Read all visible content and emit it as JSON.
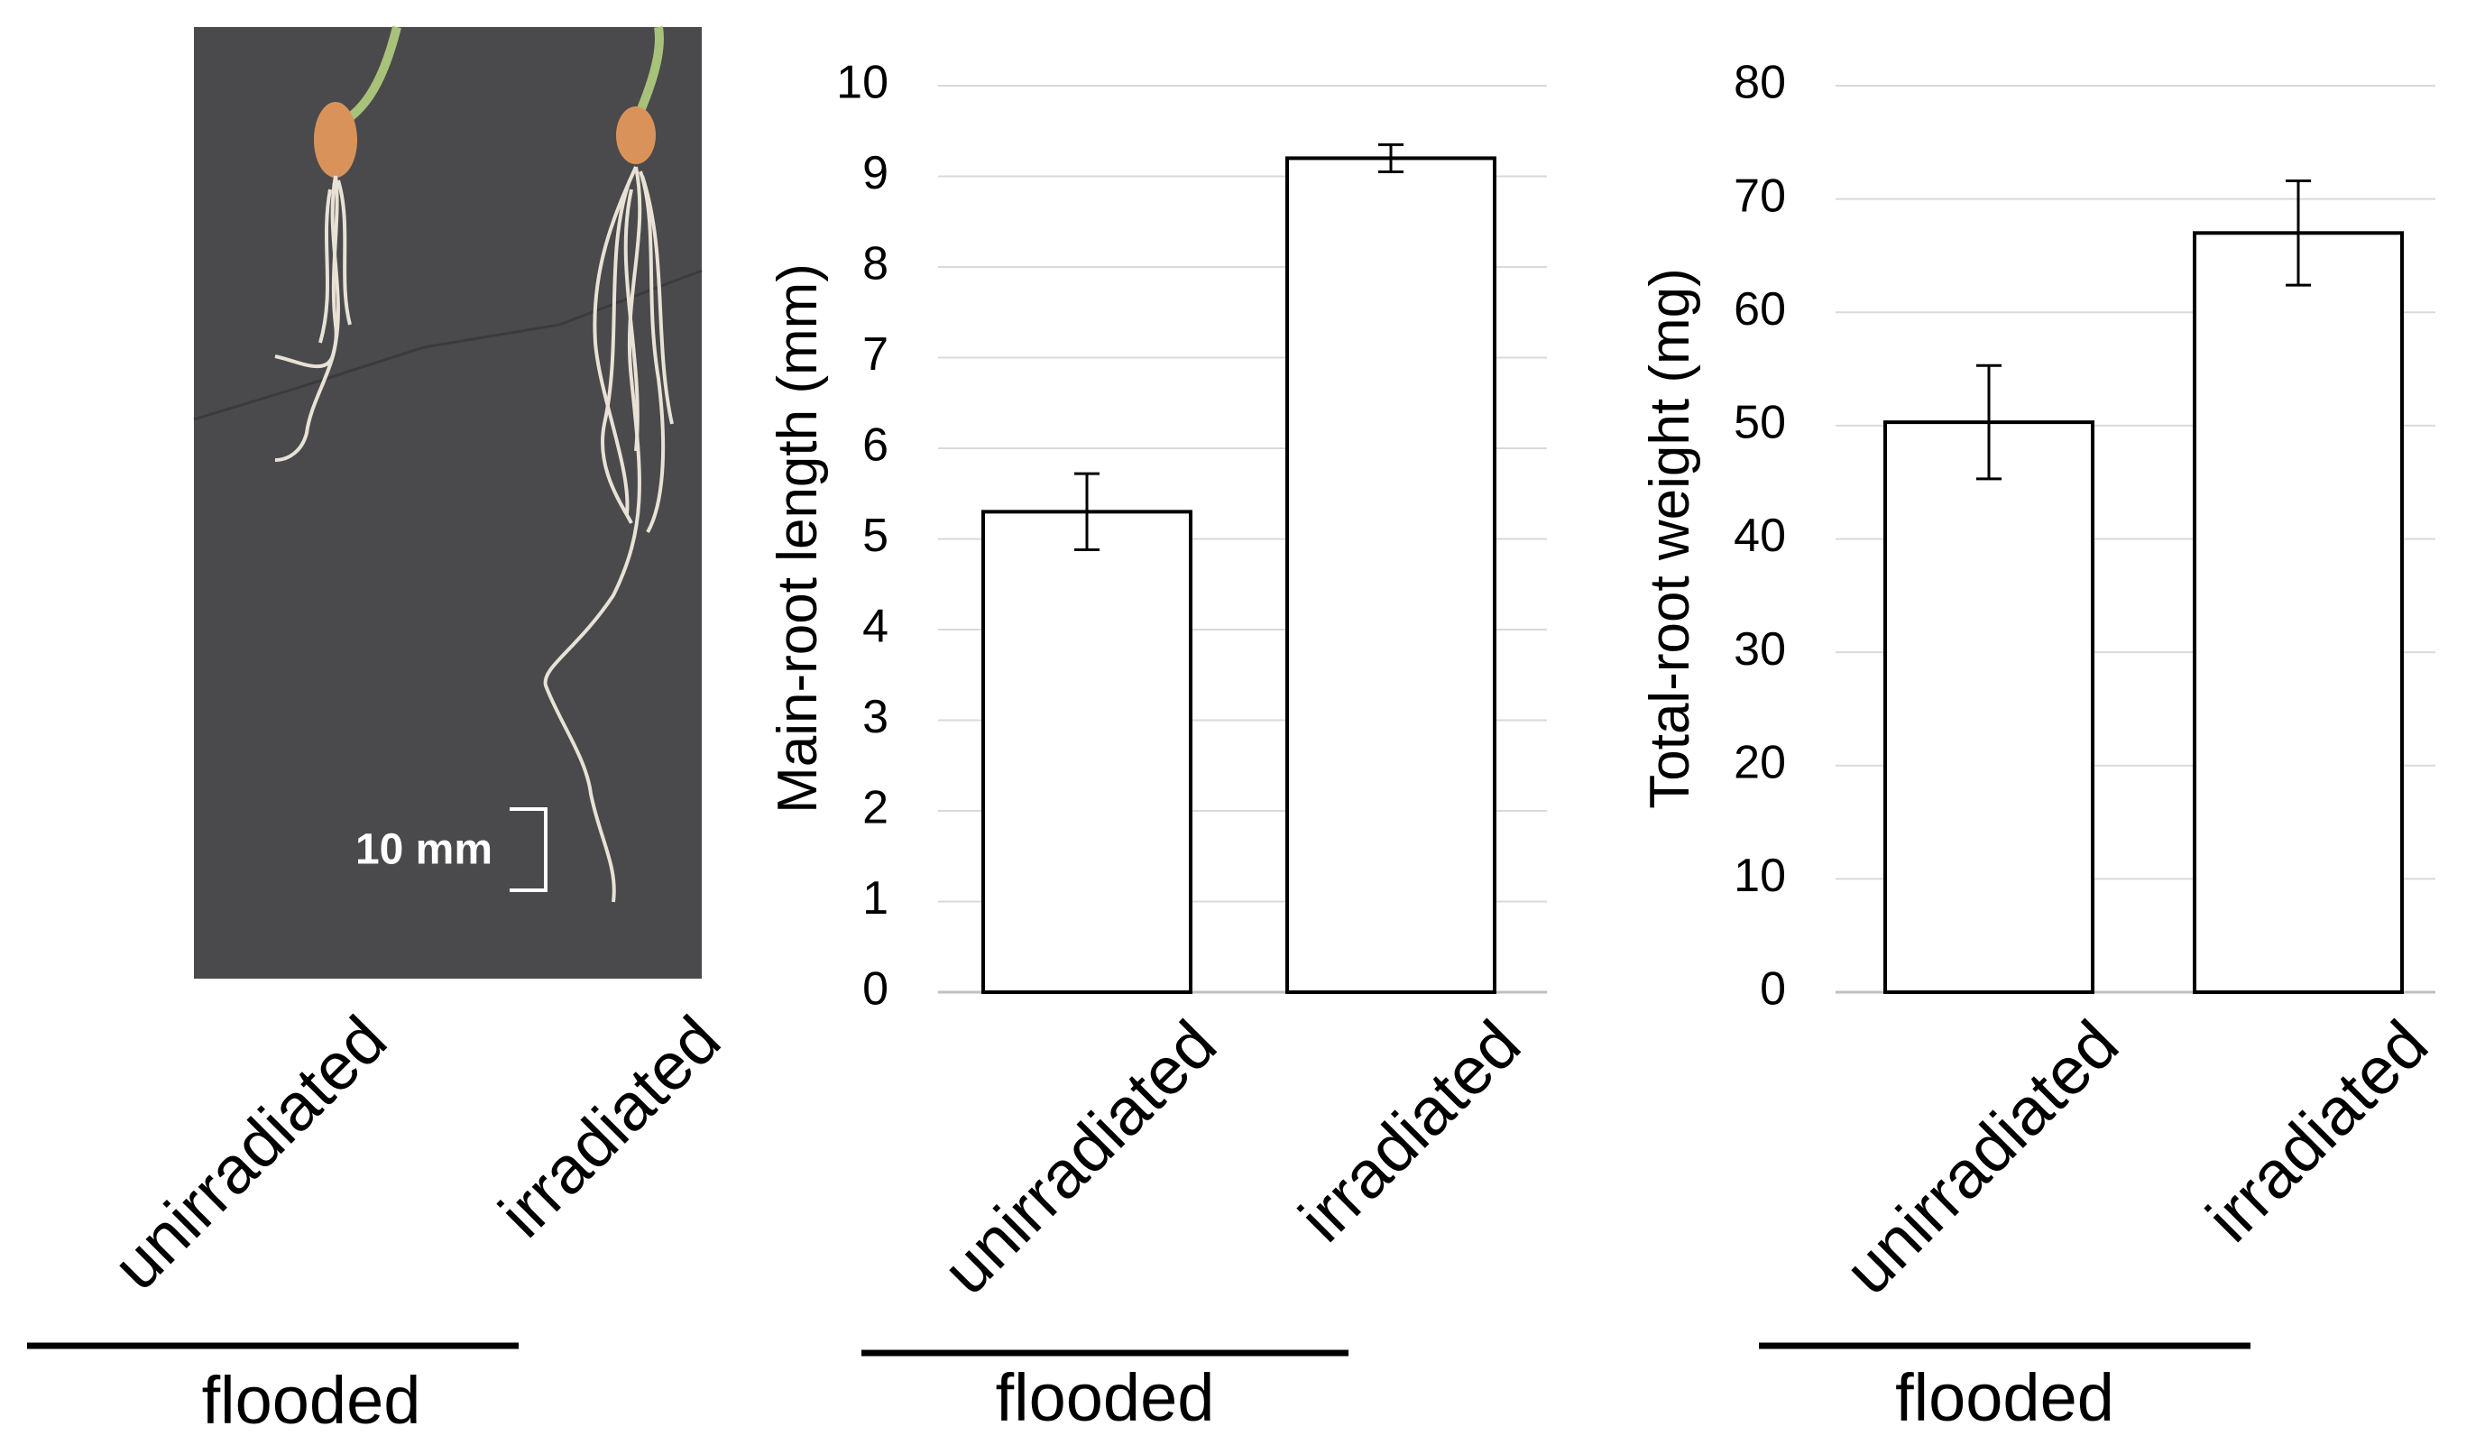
{
  "photo": {
    "scale_bar_label": "10 mm",
    "left_label": "unirradiated",
    "right_label": "irradiated",
    "group_label": "flooded"
  },
  "colors": {
    "photo_background": "#4a4a4c",
    "root": "#e8e2d6",
    "seed": "#d9935a",
    "shoot": "#a8c27a",
    "bar_fill": "#ffffff",
    "grid": "#d9d9d9"
  },
  "chart_data": [
    {
      "type": "bar",
      "categories": [
        "unirradiated",
        "irradiated"
      ],
      "values": [
        5.3,
        9.2
      ],
      "errors": [
        0.42,
        0.15
      ],
      "ylabel": "Main-root length (mm)",
      "ylim": [
        0,
        10
      ],
      "yticks": [
        0,
        1,
        2,
        3,
        4,
        5,
        6,
        7,
        8,
        9,
        10
      ],
      "grid": true,
      "group_label": "flooded"
    },
    {
      "type": "bar",
      "categories": [
        "unirradiated",
        "irradiated"
      ],
      "values": [
        50.3,
        67.0
      ],
      "errors": [
        5.0,
        4.6
      ],
      "ylabel": "Total-root weight (mg)",
      "ylim": [
        0,
        80
      ],
      "yticks": [
        0,
        10,
        20,
        30,
        40,
        50,
        60,
        70,
        80
      ],
      "grid": true,
      "group_label": "flooded"
    }
  ]
}
